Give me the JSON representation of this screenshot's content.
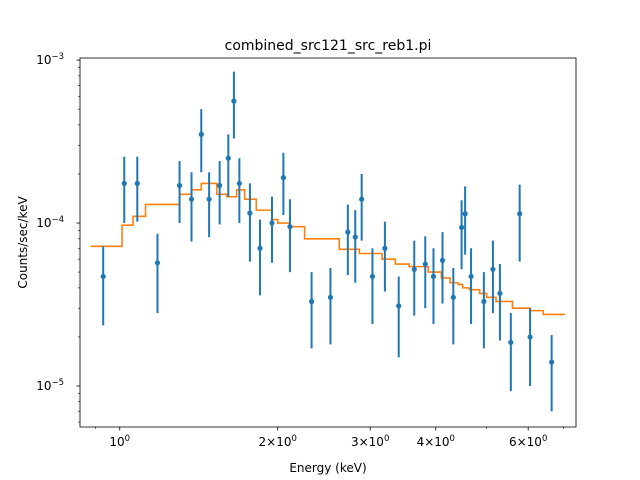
{
  "chart_data": {
    "type": "scatter",
    "title": "combined_src121_src_reb1.pi",
    "xlabel": "Energy (keV)",
    "ylabel": "Counts/sec/keV",
    "xscale": "log",
    "yscale": "log",
    "xlim": [
      0.84,
      7.4
    ],
    "ylim": [
      5.6e-06,
      0.00103
    ],
    "x_ticks": [
      {
        "value": 1,
        "label": "10",
        "exp": "0"
      },
      {
        "value": 2,
        "label": "2×10",
        "exp": "0"
      },
      {
        "value": 3,
        "label": "3×10",
        "exp": "0"
      },
      {
        "value": 4,
        "label": "4×10",
        "exp": "0"
      },
      {
        "value": 6,
        "label": "6×10",
        "exp": "0"
      }
    ],
    "y_ticks": [
      {
        "value": 1e-05,
        "label": "10",
        "exp": "−5"
      },
      {
        "value": 0.0001,
        "label": "10",
        "exp": "−4"
      },
      {
        "value": 0.001,
        "label": "10",
        "exp": "−3"
      }
    ],
    "grid": false,
    "colors": {
      "data": "#1f77b4",
      "model": "#ff7f0e"
    },
    "series": [
      {
        "kind": "data-with-errors",
        "points": [
          {
            "x": 0.93,
            "y": 4.7e-05,
            "ylo": 2.35e-05,
            "yhi": 7.2e-05
          },
          {
            "x": 1.02,
            "y": 0.000175,
            "ylo": 0.0001,
            "yhi": 0.000255
          },
          {
            "x": 1.08,
            "y": 0.000175,
            "ylo": 0.000102,
            "yhi": 0.000255
          },
          {
            "x": 1.18,
            "y": 5.7e-05,
            "ylo": 2.8e-05,
            "yhi": 8.6e-05
          },
          {
            "x": 1.3,
            "y": 0.00017,
            "ylo": 0.0001,
            "yhi": 0.00024
          },
          {
            "x": 1.37,
            "y": 0.00014,
            "ylo": 7.7e-05,
            "yhi": 0.000205
          },
          {
            "x": 1.43,
            "y": 0.00035,
            "ylo": 0.000205,
            "yhi": 0.0005
          },
          {
            "x": 1.48,
            "y": 0.00014,
            "ylo": 8.2e-05,
            "yhi": 0.000205
          },
          {
            "x": 1.55,
            "y": 0.00017,
            "ylo": 9.8e-05,
            "yhi": 0.00024
          },
          {
            "x": 1.61,
            "y": 0.00025,
            "ylo": 0.000145,
            "yhi": 0.00035
          },
          {
            "x": 1.65,
            "y": 0.00056,
            "ylo": 0.00033,
            "yhi": 0.00085
          },
          {
            "x": 1.69,
            "y": 0.000175,
            "ylo": 0.0001,
            "yhi": 0.00025
          },
          {
            "x": 1.77,
            "y": 0.000115,
            "ylo": 5.8e-05,
            "yhi": 0.000175
          },
          {
            "x": 1.85,
            "y": 7e-05,
            "ylo": 3.6e-05,
            "yhi": 0.000105
          },
          {
            "x": 1.95,
            "y": 0.0001,
            "ylo": 5.7e-05,
            "yhi": 0.000145
          },
          {
            "x": 2.05,
            "y": 0.00019,
            "ylo": 0.000112,
            "yhi": 0.00027
          },
          {
            "x": 2.11,
            "y": 9.5e-05,
            "ylo": 5e-05,
            "yhi": 0.00014
          },
          {
            "x": 2.32,
            "y": 3.3e-05,
            "ylo": 1.7e-05,
            "yhi": 5e-05
          },
          {
            "x": 2.52,
            "y": 3.5e-05,
            "ylo": 1.8e-05,
            "yhi": 5.3e-05
          },
          {
            "x": 2.72,
            "y": 8.8e-05,
            "ylo": 4.8e-05,
            "yhi": 0.00013
          },
          {
            "x": 2.81,
            "y": 8.2e-05,
            "ylo": 4.3e-05,
            "yhi": 0.00012
          },
          {
            "x": 2.89,
            "y": 0.00014,
            "ylo": 7.8e-05,
            "yhi": 0.0002
          },
          {
            "x": 3.03,
            "y": 4.7e-05,
            "ylo": 2.4e-05,
            "yhi": 7e-05
          },
          {
            "x": 3.2,
            "y": 7e-05,
            "ylo": 3.8e-05,
            "yhi": 0.000102
          },
          {
            "x": 3.4,
            "y": 3.1e-05,
            "ylo": 1.5e-05,
            "yhi": 4.7e-05
          },
          {
            "x": 3.64,
            "y": 5.2e-05,
            "ylo": 2.7e-05,
            "yhi": 7.8e-05
          },
          {
            "x": 3.82,
            "y": 5.6e-05,
            "ylo": 3e-05,
            "yhi": 8.3e-05
          },
          {
            "x": 3.96,
            "y": 4.7e-05,
            "ylo": 2.4e-05,
            "yhi": 7e-05
          },
          {
            "x": 4.12,
            "y": 5.9e-05,
            "ylo": 3.2e-05,
            "yhi": 8.8e-05
          },
          {
            "x": 4.32,
            "y": 3.5e-05,
            "ylo": 1.8e-05,
            "yhi": 5.3e-05
          },
          {
            "x": 4.48,
            "y": 9.4e-05,
            "ylo": 5.2e-05,
            "yhi": 0.000138
          },
          {
            "x": 4.55,
            "y": 0.000114,
            "ylo": 6.4e-05,
            "yhi": 0.000168
          },
          {
            "x": 4.67,
            "y": 4.7e-05,
            "ylo": 2.4e-05,
            "yhi": 7e-05
          },
          {
            "x": 4.94,
            "y": 3.3e-05,
            "ylo": 1.7e-05,
            "yhi": 5e-05
          },
          {
            "x": 5.14,
            "y": 5.2e-05,
            "ylo": 2.8e-05,
            "yhi": 7.8e-05
          },
          {
            "x": 5.3,
            "y": 3.7e-05,
            "ylo": 1.9e-05,
            "yhi": 5.6e-05
          },
          {
            "x": 5.56,
            "y": 1.85e-05,
            "ylo": 9.3e-06,
            "yhi": 2.8e-05
          },
          {
            "x": 5.78,
            "y": 0.000114,
            "ylo": 5.8e-05,
            "yhi": 0.000172
          },
          {
            "x": 6.05,
            "y": 2e-05,
            "ylo": 1e-05,
            "yhi": 3e-05
          },
          {
            "x": 6.65,
            "y": 1.4e-05,
            "ylo": 7e-06,
            "yhi": 2.05e-05
          }
        ]
      },
      {
        "kind": "model-step",
        "edges": [
          0.88,
          1.01,
          1.06,
          1.12,
          1.3,
          1.37,
          1.43,
          1.53,
          1.6,
          1.67,
          1.73,
          1.82,
          1.95,
          2.0,
          2.11,
          2.25,
          2.62,
          2.86,
          3.16,
          3.35,
          3.56,
          3.87,
          4.1,
          4.26,
          4.41,
          4.5,
          4.64,
          4.85,
          5.0,
          5.21,
          5.6,
          6.05,
          6.41,
          7.05
        ],
        "values": [
          7.2e-05,
          9.7e-05,
          0.00011,
          0.00013,
          0.00015,
          0.00016,
          0.000175,
          0.00015,
          0.000145,
          0.00016,
          0.00014,
          0.00012,
          0.000105,
          0.0001,
          9.5e-05,
          8e-05,
          6.9e-05,
          6.5e-05,
          6e-05,
          5.6e-05,
          5.4e-05,
          5e-05,
          4.6e-05,
          4.3e-05,
          4.2e-05,
          4e-05,
          3.9e-05,
          3.7e-05,
          3.5e-05,
          3.3e-05,
          3e-05,
          2.9e-05,
          2.75e-05
        ]
      }
    ]
  }
}
